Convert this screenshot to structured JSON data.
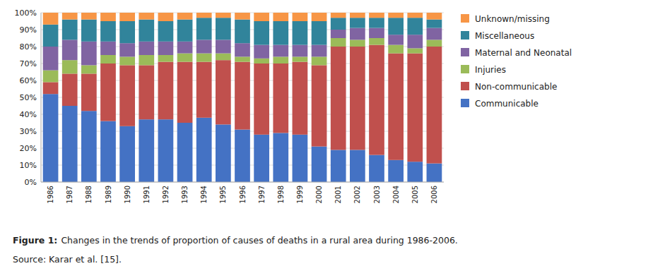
{
  "chart_data": {
    "type": "bar",
    "stacked": true,
    "categories": [
      "1986",
      "1987",
      "1988",
      "1989",
      "1990",
      "1991",
      "1992",
      "1993",
      "1994",
      "1995",
      "1996",
      "1997",
      "1998",
      "1999",
      "2000",
      "2001",
      "2002",
      "2003",
      "2004",
      "2005",
      "2006"
    ],
    "series": [
      {
        "name": "Communicable",
        "color": "#4472C4",
        "values": [
          52,
          45,
          42,
          36,
          33,
          37,
          37,
          35,
          38,
          34,
          31,
          28,
          29,
          28,
          21,
          19,
          19,
          16,
          13,
          12,
          11
        ]
      },
      {
        "name": "Non-communicable",
        "color": "#C0504D",
        "values": [
          7,
          19,
          22,
          34,
          36,
          32,
          34,
          36,
          33,
          38,
          40,
          42,
          41,
          43,
          48,
          61,
          61,
          65,
          63,
          64,
          69
        ]
      },
      {
        "name": "Injuries",
        "color": "#9BBB59",
        "values": [
          7,
          8,
          5,
          5,
          5,
          6,
          4,
          5,
          5,
          4,
          3,
          3,
          4,
          3,
          5,
          5,
          4,
          4,
          5,
          3,
          4
        ]
      },
      {
        "name": "Maternal and Neonatal",
        "color": "#8064A2",
        "values": [
          14,
          12,
          14,
          8,
          8,
          8,
          8,
          7,
          8,
          8,
          8,
          8,
          7,
          7,
          7,
          5,
          7,
          6,
          6,
          8,
          7
        ]
      },
      {
        "name": "Miscellaneous",
        "color": "#31849B",
        "values": [
          13,
          12,
          13,
          12,
          13,
          13,
          12,
          13,
          13,
          13,
          14,
          14,
          14,
          14,
          14,
          7,
          6,
          6,
          10,
          10,
          5
        ]
      },
      {
        "name": "Unknown/missing",
        "color": "#F79646",
        "values": [
          7,
          4,
          4,
          5,
          5,
          4,
          5,
          4,
          3,
          3,
          4,
          5,
          5,
          5,
          5,
          3,
          3,
          3,
          3,
          3,
          4
        ]
      }
    ],
    "ylim": [
      0,
      100
    ],
    "yticks": [
      {
        "value": 0,
        "label": "0%"
      },
      {
        "value": 10,
        "label": "10%"
      },
      {
        "value": 20,
        "label": "20%"
      },
      {
        "value": 30,
        "label": "30%"
      },
      {
        "value": 40,
        "label": "40%"
      },
      {
        "value": 50,
        "label": "50%"
      },
      {
        "value": 60,
        "label": "60%"
      },
      {
        "value": 70,
        "label": "70%"
      },
      {
        "value": 80,
        "label": "80%"
      },
      {
        "value": 90,
        "label": "90%"
      },
      {
        "value": 100,
        "label": "100%"
      }
    ],
    "grid": true,
    "legend": "right",
    "annotations": [
      "Figure 1:",
      "Changes in the trends of proportion of causes of deaths in a rural area during 1986-2006.",
      "Source: Karar et al. [15]."
    ]
  }
}
